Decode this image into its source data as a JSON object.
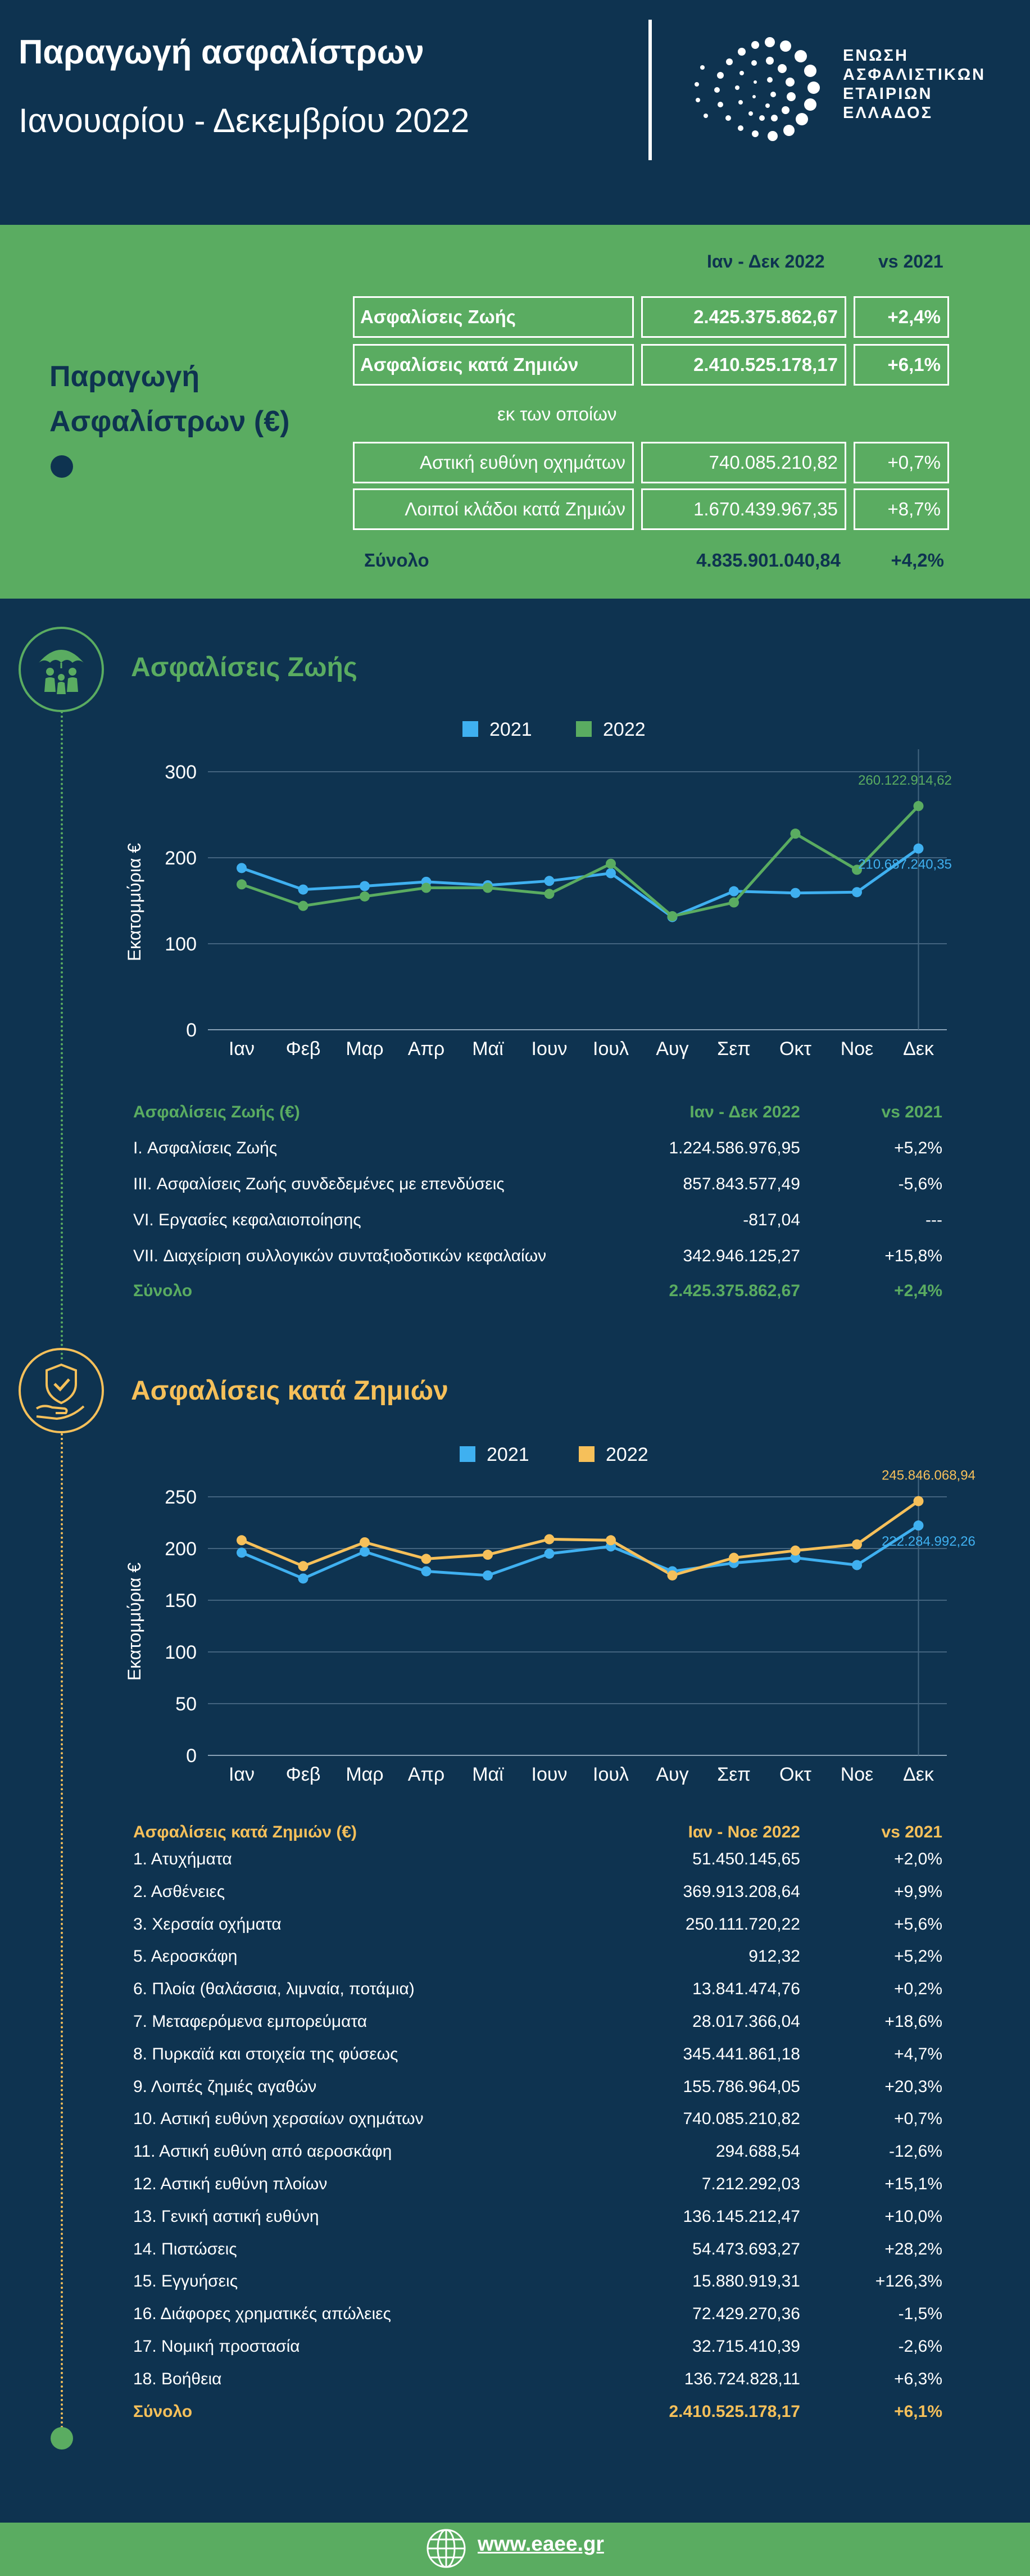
{
  "header": {
    "title": "Παραγωγή ασφαλίστρων",
    "subtitle": "Ιανουαρίου - Δεκεμβρίου 2022",
    "logo_lines": [
      "ΕΝΩΣΗ",
      "ΑΣΦΑΛΙΣΤΙΚΩΝ",
      "ΕΤΑΙΡΙΩΝ",
      "ΕΛΛΑΔΟΣ"
    ]
  },
  "production": {
    "label_line1": "Παραγωγή",
    "label_line2": "Ασφαλίστρων (€)",
    "period_header": "Ιαν - Δεκ 2022",
    "vs_header": "vs 2021",
    "life": {
      "label": "Ασφαλίσεις Ζωής",
      "value": "2.425.375.862,67",
      "change": "+2,4%"
    },
    "nonlife": {
      "label": "Ασφαλίσεις κατά Ζημιών",
      "value": "2.410.525.178,17",
      "change": "+6,1%"
    },
    "of_which": "εκ των οποίων",
    "motor": {
      "label": "Αστική ευθύνη οχημάτων",
      "value": "740.085.210,82",
      "change": "+0,7%"
    },
    "other": {
      "label": "Λοιποί κλάδοι κατά Ζημιών",
      "value": "1.670.439.967,35",
      "change": "+8,7%"
    },
    "total": {
      "label": "Σύνολο",
      "value": "4.835.901.040,84",
      "change": "+4,2%"
    }
  },
  "life_section": {
    "title": "Ασφαλίσεις Ζωής",
    "table_header": {
      "label": "Ασφαλίσεις Ζωής (€)",
      "period": "Ιαν - Δεκ 2022",
      "vs": "vs 2021"
    },
    "rows": [
      {
        "label": "I. Ασφαλίσεις  Ζωής",
        "value": "1.224.586.976,95",
        "change": "+5,2%"
      },
      {
        "label": "III. Ασφαλίσεις  Ζωής  συνδεδεμένες με επενδύσεις",
        "value": "857.843.577,49",
        "change": "-5,6%"
      },
      {
        "label": "VI. Εργασίες κεφαλαιοποίησης",
        "value": "-817,04",
        "change": "---"
      },
      {
        "label": "VII. Διαχείριση συλλογικών συνταξιοδοτικών κεφαλαίων",
        "value": "342.946.125,27",
        "change": "+15,8%"
      }
    ],
    "total": {
      "label": "Σύνολο",
      "value": "2.425.375.862,67",
      "change": "+2,4%"
    }
  },
  "nonlife_section": {
    "title": "Ασφαλίσεις κατά Ζημιών",
    "table_header": {
      "label": "Ασφαλίσεις κατά Ζημιών (€)",
      "period": "Ιαν - Νοε 2022",
      "vs": "vs 2021"
    },
    "rows": [
      {
        "label": "1. Ατυχήματα",
        "value": "51.450.145,65",
        "change": "+2,0%"
      },
      {
        "label": "2. Ασθένειες",
        "value": "369.913.208,64",
        "change": "+9,9%"
      },
      {
        "label": "3. Χερσαία οχήματα",
        "value": "250.111.720,22",
        "change": "+5,6%"
      },
      {
        "label": "5. Αεροσκάφη",
        "value": "912,32",
        "change": "+5,2%"
      },
      {
        "label": "6. Πλοία (θαλάσσια, λιμναία, ποτάμια)",
        "value": "13.841.474,76",
        "change": "+0,2%"
      },
      {
        "label": "7. Μεταφερόμενα εμπορεύματα",
        "value": "28.017.366,04",
        "change": "+18,6%"
      },
      {
        "label": "8. Πυρκαϊά και στοιχεία της φύσεως",
        "value": "345.441.861,18",
        "change": "+4,7%"
      },
      {
        "label": "9. Λοιπές ζημιές αγαθών",
        "value": "155.786.964,05",
        "change": "+20,3%"
      },
      {
        "label": "10. Αστική ευθύνη χερσαίων οχημάτων",
        "value": "740.085.210,82",
        "change": "+0,7%"
      },
      {
        "label": "11. Αστική ευθύνη από αεροσκάφη",
        "value": "294.688,54",
        "change": "-12,6%"
      },
      {
        "label": "12. Αστική ευθύνη πλοίων",
        "value": "7.212.292,03",
        "change": "+15,1%"
      },
      {
        "label": "13. Γενική αστική ευθύνη",
        "value": "136.145.212,47",
        "change": "+10,0%"
      },
      {
        "label": "14. Πιστώσεις",
        "value": "54.473.693,27",
        "change": "+28,2%"
      },
      {
        "label": "15. Εγγυήσεις",
        "value": "15.880.919,31",
        "change": "+126,3%"
      },
      {
        "label": "16. Διάφορες χρηματικές απώλειες",
        "value": "72.429.270,36",
        "change": "-1,5%"
      },
      {
        "label": "17. Νομική προστασία",
        "value": "32.715.410,39",
        "change": "-2,6%"
      },
      {
        "label": "18. Βοήθεια",
        "value": "136.724.828,11",
        "change": "+6,3%"
      }
    ],
    "total": {
      "label": "Σύνολο",
      "value": "2.410.525.178,17",
      "change": "+6,1%"
    }
  },
  "footer": {
    "link": "www.eaee.gr"
  },
  "colors": {
    "navy": "#0e3350",
    "green": "#5aac61",
    "blue": "#3fb0f0",
    "orange": "#f6c05a",
    "white": "#ffffff"
  },
  "chart_data": [
    {
      "type": "line",
      "title": "Ασφαλίσεις Ζωής",
      "ylabel": "Εκατομμύρια €",
      "ylim": [
        0,
        300
      ],
      "yticks": [
        0,
        100,
        200,
        300
      ],
      "categories": [
        "Ιαν",
        "Φεβ",
        "Μαρ",
        "Απρ",
        "Μαϊ",
        "Ιουν",
        "Ιουλ",
        "Αυγ",
        "Σεπ",
        "Οκτ",
        "Νοε",
        "Δεκ"
      ],
      "series": [
        {
          "name": "2021",
          "color": "#3fb0f0",
          "values": [
            188,
            163,
            167,
            172,
            168,
            173,
            182,
            131,
            161,
            159,
            160,
            210.69
          ]
        },
        {
          "name": "2022",
          "color": "#5aac61",
          "values": [
            169,
            144,
            155,
            165,
            165,
            158,
            193,
            132,
            148,
            228,
            186,
            260.12
          ]
        }
      ],
      "annotations": [
        {
          "series": "2022",
          "index": 11,
          "text": "260.122.914,62"
        },
        {
          "series": "2021",
          "index": 11,
          "text": "210.687.240,35"
        }
      ]
    },
    {
      "type": "line",
      "title": "Ασφαλίσεις κατά Ζημιών",
      "ylabel": "Εκατομμύρια €",
      "ylim": [
        0,
        250
      ],
      "yticks": [
        0,
        50,
        100,
        150,
        200,
        250
      ],
      "categories": [
        "Ιαν",
        "Φεβ",
        "Μαρ",
        "Απρ",
        "Μαϊ",
        "Ιουν",
        "Ιουλ",
        "Αυγ",
        "Σεπ",
        "Οκτ",
        "Νοε",
        "Δεκ"
      ],
      "series": [
        {
          "name": "2021",
          "color": "#3fb0f0",
          "values": [
            196,
            171,
            197,
            178,
            174,
            195,
            202,
            178,
            186,
            191,
            184,
            222.28
          ]
        },
        {
          "name": "2022",
          "color": "#f6c05a",
          "values": [
            208,
            183,
            206,
            190,
            194,
            209,
            208,
            174,
            191,
            198,
            204,
            245.85
          ]
        }
      ],
      "annotations": [
        {
          "series": "2022",
          "index": 11,
          "text": "245.846.068,94"
        },
        {
          "series": "2021",
          "index": 11,
          "text": "222.284.992,26"
        }
      ]
    }
  ]
}
